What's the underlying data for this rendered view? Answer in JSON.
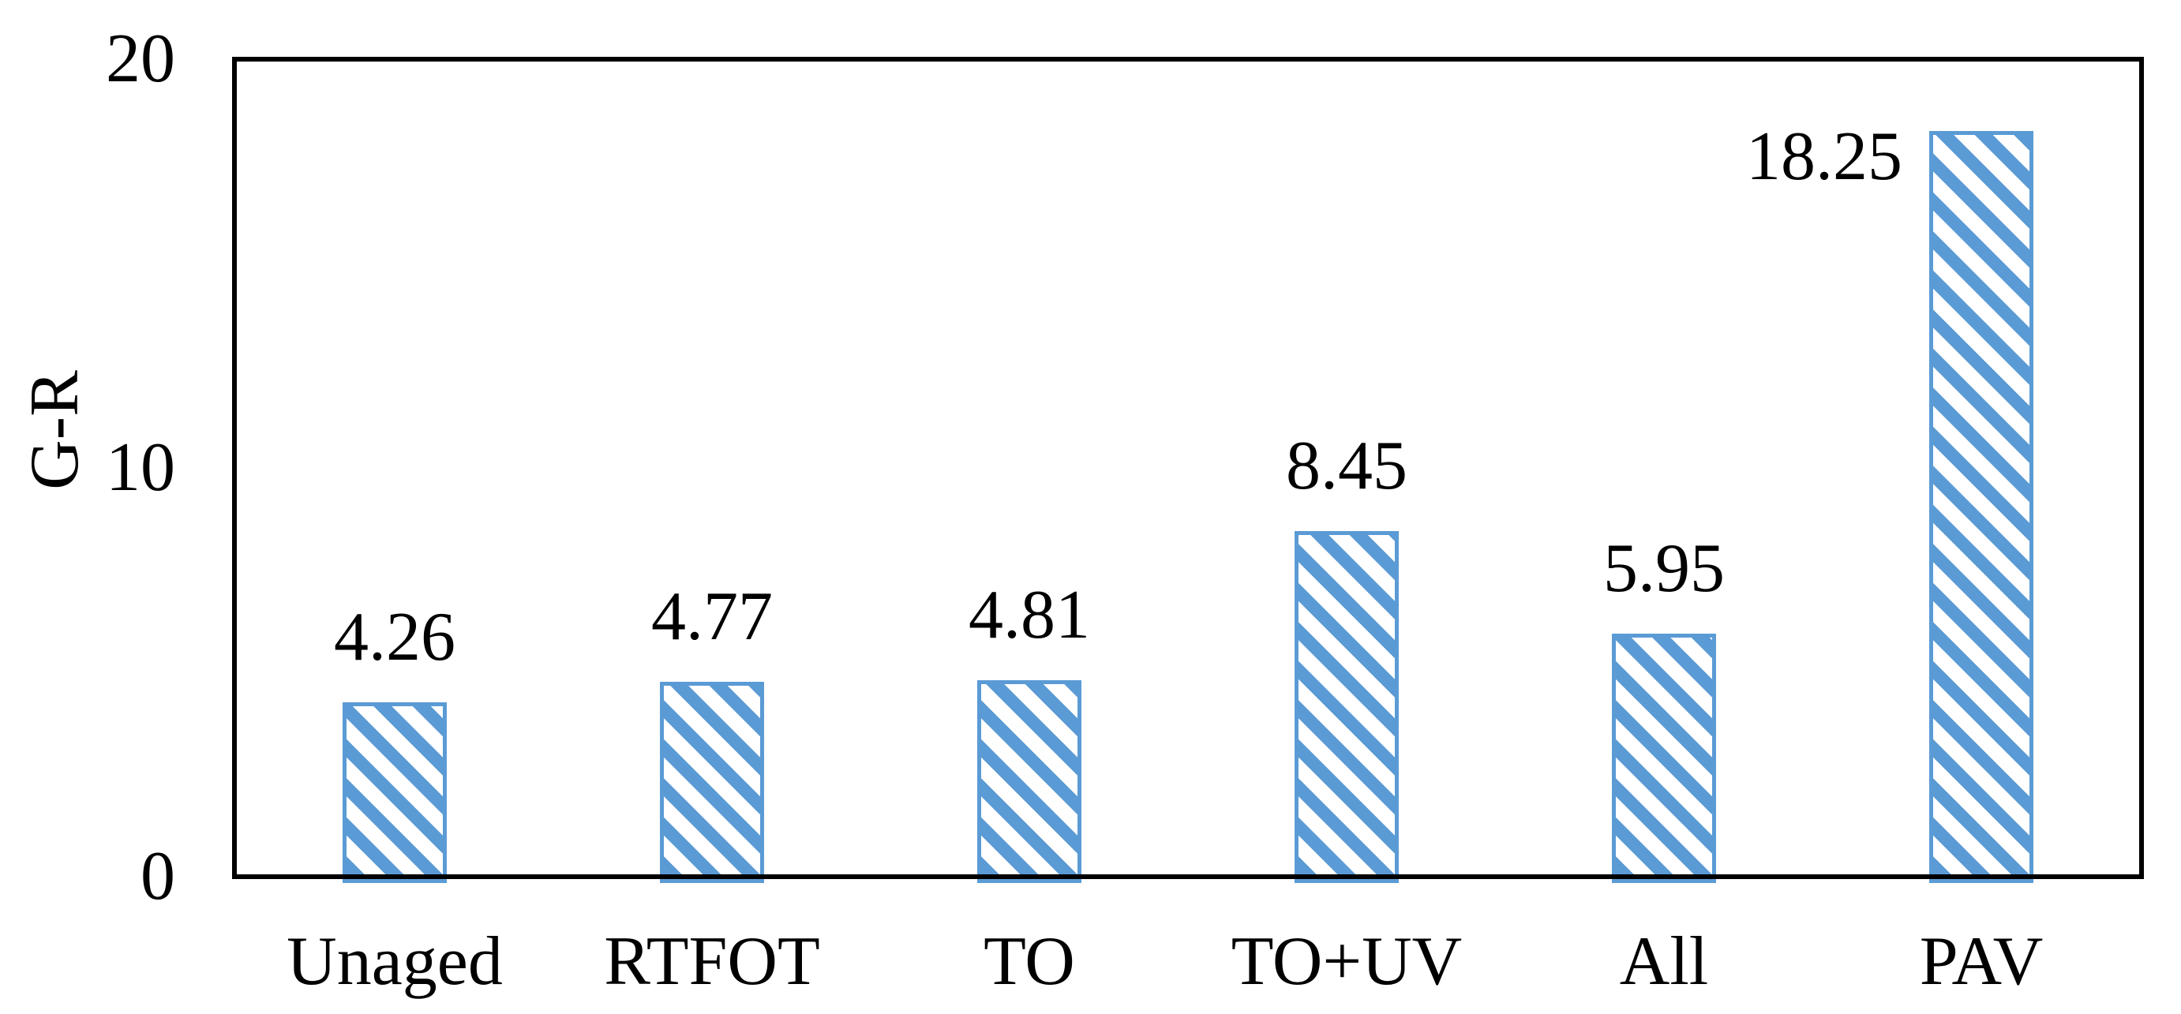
{
  "chart_data": {
    "type": "bar",
    "title": "",
    "ylabel": "G-R",
    "xlabel": "",
    "categories": [
      "Unaged",
      "RTFOT",
      "TO",
      "TO+UV",
      "All",
      "PAV"
    ],
    "values": [
      4.26,
      4.77,
      4.81,
      8.45,
      5.95,
      18.25
    ],
    "data_labels": [
      "4.26",
      "4.77",
      "4.81",
      "8.45",
      "5.95",
      "18.25"
    ],
    "data_label_placement": [
      "above",
      "above",
      "above",
      "above",
      "above",
      "left-of-top"
    ],
    "ylim": [
      0,
      20
    ],
    "yticks": [
      "0",
      "10",
      "20"
    ],
    "ytick_values": [
      0,
      10,
      20
    ],
    "grid": false,
    "legend": false,
    "styles": {
      "bar_stripe_color": "#5B9BD5",
      "bar_fill_color": "#FFFFFF",
      "bar_border_color": "#5B9BD5",
      "bar_pattern": "diagonal-down-stripes",
      "axis_color": "#000000",
      "text_color": "#000000",
      "background_color": "#FFFFFF"
    }
  }
}
